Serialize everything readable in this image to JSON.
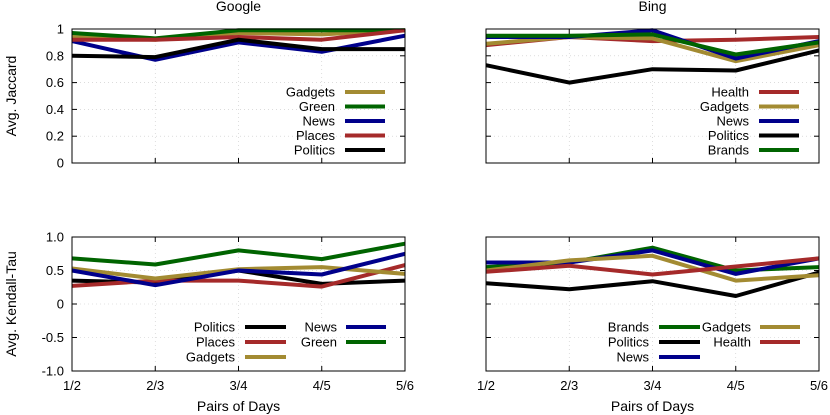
{
  "xlabel": "Pairs of Days",
  "chart_data": [
    {
      "type": "line",
      "title": "Google",
      "ylabel": "Avg. Jaccard",
      "xlabel": "",
      "categories": [
        "1/2",
        "2/3",
        "3/4",
        "4/5",
        "5/6"
      ],
      "ylim": [
        0,
        1
      ],
      "yticks": [
        "0",
        "0.2",
        "0.4",
        "0.6",
        "0.8",
        "1"
      ],
      "ytick_values": [
        0,
        0.2,
        0.4,
        0.6,
        0.8,
        1
      ],
      "show_xticklabels": false,
      "legend": "bottom-right",
      "series": [
        {
          "name": "Gadgets",
          "color": "#a38b32",
          "values": [
            0.94,
            0.92,
            0.97,
            0.96,
            0.99
          ]
        },
        {
          "name": "Green",
          "color": "#006400",
          "values": [
            0.97,
            0.93,
            0.99,
            0.99,
            0.99
          ]
        },
        {
          "name": "News",
          "color": "#00008b",
          "values": [
            0.91,
            0.77,
            0.9,
            0.83,
            0.95
          ]
        },
        {
          "name": "Places",
          "color": "#a52a2a",
          "values": [
            0.92,
            0.92,
            0.94,
            0.92,
            0.99
          ]
        },
        {
          "name": "Politics",
          "color": "#000000",
          "values": [
            0.8,
            0.79,
            0.92,
            0.85,
            0.85
          ]
        }
      ],
      "legend_layout": "single"
    },
    {
      "type": "line",
      "title": "Bing",
      "ylabel": "",
      "xlabel": "",
      "categories": [
        "1/2",
        "2/3",
        "3/4",
        "4/5",
        "5/6"
      ],
      "ylim": [
        0,
        1
      ],
      "yticks": [],
      "ytick_values": [
        0,
        0.2,
        0.4,
        0.6,
        0.8,
        1
      ],
      "show_xticklabels": false,
      "legend": "bottom-right",
      "series": [
        {
          "name": "Health",
          "color": "#a52a2a",
          "values": [
            0.88,
            0.94,
            0.91,
            0.92,
            0.94
          ]
        },
        {
          "name": "Gadgets",
          "color": "#a38b32",
          "values": [
            0.89,
            0.94,
            0.93,
            0.76,
            0.88
          ]
        },
        {
          "name": "News",
          "color": "#00008b",
          "values": [
            0.94,
            0.94,
            0.99,
            0.78,
            0.91
          ]
        },
        {
          "name": "Politics",
          "color": "#000000",
          "values": [
            0.73,
            0.6,
            0.7,
            0.69,
            0.84
          ]
        },
        {
          "name": "Brands",
          "color": "#006400",
          "values": [
            0.95,
            0.95,
            0.96,
            0.81,
            0.9
          ]
        }
      ],
      "legend_layout": "single"
    },
    {
      "type": "line",
      "title": "",
      "ylabel": "Avg. Kendall-Tau",
      "xlabel": "Pairs of Days",
      "categories": [
        "1/2",
        "2/3",
        "3/4",
        "4/5",
        "5/6"
      ],
      "ylim": [
        -1,
        1
      ],
      "yticks": [
        "-1.0",
        "-0.5",
        "0",
        "0.5",
        "1.0"
      ],
      "ytick_values": [
        -1,
        -0.5,
        0,
        0.5,
        1
      ],
      "show_xticklabels": true,
      "legend": "bottom",
      "series": [
        {
          "name": "Politics",
          "color": "#000000",
          "values": [
            0.35,
            0.32,
            0.5,
            0.3,
            0.35
          ]
        },
        {
          "name": "Places",
          "color": "#a52a2a",
          "values": [
            0.27,
            0.35,
            0.35,
            0.26,
            0.58
          ]
        },
        {
          "name": "Gadgets",
          "color": "#a38b32",
          "values": [
            0.53,
            0.38,
            0.52,
            0.55,
            0.45
          ]
        },
        {
          "name": "News",
          "color": "#00008b",
          "values": [
            0.5,
            0.28,
            0.5,
            0.44,
            0.75
          ]
        },
        {
          "name": "Green",
          "color": "#006400",
          "values": [
            0.68,
            0.59,
            0.8,
            0.67,
            0.9
          ]
        }
      ],
      "legend_layout": "two-column-3"
    },
    {
      "type": "line",
      "title": "",
      "ylabel": "",
      "xlabel": "Pairs of Days",
      "categories": [
        "1/2",
        "2/3",
        "3/4",
        "4/5",
        "5/6"
      ],
      "ylim": [
        -1,
        1
      ],
      "yticks": [],
      "ytick_values": [
        -1,
        -0.5,
        0,
        0.5,
        1
      ],
      "show_xticklabels": true,
      "legend": "bottom",
      "series": [
        {
          "name": "Brands",
          "color": "#006400",
          "values": [
            0.55,
            0.62,
            0.84,
            0.5,
            0.55
          ]
        },
        {
          "name": "Politics",
          "color": "#000000",
          "values": [
            0.31,
            0.22,
            0.34,
            0.12,
            0.47
          ]
        },
        {
          "name": "News",
          "color": "#00008b",
          "values": [
            0.62,
            0.62,
            0.8,
            0.45,
            0.68
          ]
        },
        {
          "name": "Gadgets",
          "color": "#a38b32",
          "values": [
            0.5,
            0.65,
            0.72,
            0.35,
            0.43
          ]
        },
        {
          "name": "Health",
          "color": "#a52a2a",
          "values": [
            0.48,
            0.57,
            0.44,
            0.56,
            0.68
          ]
        }
      ],
      "legend_layout": "two-column-3"
    }
  ]
}
